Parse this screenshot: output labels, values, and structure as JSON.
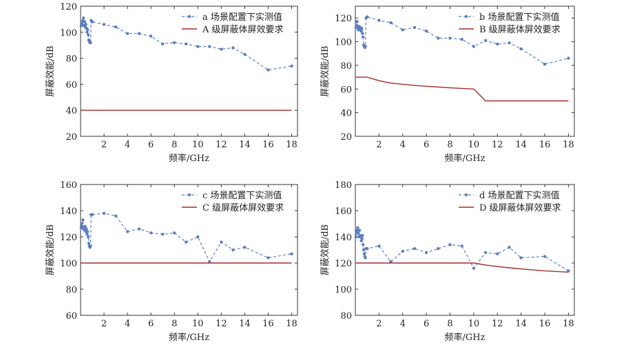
{
  "colors": {
    "measured": "#5b7fbf",
    "requirement": "#a52a2a",
    "axis": "#333333",
    "text": "#222222"
  },
  "chart_data": [
    {
      "type": "line",
      "xlabel": "频率/GHz",
      "ylabel": "屏蔽效能/dB",
      "xlim": [
        0,
        18.5
      ],
      "ylim": [
        20,
        120
      ],
      "xticks": [
        2,
        4,
        6,
        8,
        10,
        12,
        14,
        16,
        18
      ],
      "yticks": [
        20,
        40,
        60,
        80,
        100,
        120
      ],
      "legend_position": "top-right",
      "series": [
        {
          "name": "a 场景配置下实测值",
          "style": "dashed-markers",
          "x": [
            0.05,
            0.1,
            0.15,
            0.2,
            0.25,
            0.3,
            0.35,
            0.4,
            0.45,
            0.5,
            0.55,
            0.6,
            0.65,
            0.7,
            0.75,
            0.8,
            0.85,
            0.9,
            1,
            2,
            3,
            4,
            5,
            6,
            7,
            8,
            9,
            10,
            11,
            12,
            13,
            14,
            16,
            18
          ],
          "y": [
            105,
            108,
            106,
            109,
            111,
            105,
            108,
            104,
            106,
            103,
            100,
            102,
            98,
            94,
            93,
            92,
            92,
            109,
            108,
            106,
            104,
            99,
            99,
            97,
            91,
            92,
            91,
            89,
            89,
            87,
            88,
            83,
            71,
            74
          ]
        },
        {
          "name": "A 级屏蔽体屏效要求",
          "style": "solid",
          "x": [
            0,
            18
          ],
          "y": [
            40,
            40
          ]
        }
      ]
    },
    {
      "type": "line",
      "xlabel": "频率/GHz",
      "ylabel": "屏蔽效能/dB",
      "xlim": [
        0,
        18.5
      ],
      "ylim": [
        20,
        130
      ],
      "xticks": [
        2,
        4,
        6,
        8,
        10,
        12,
        14,
        16,
        18
      ],
      "yticks": [
        20,
        40,
        60,
        80,
        100,
        120
      ],
      "legend_position": "top-right",
      "series": [
        {
          "name": "b 场景配置下实测值",
          "style": "dashed-markers",
          "x": [
            0.05,
            0.1,
            0.15,
            0.2,
            0.25,
            0.3,
            0.35,
            0.4,
            0.45,
            0.5,
            0.55,
            0.6,
            0.65,
            0.7,
            0.75,
            0.8,
            0.85,
            0.9,
            1,
            2,
            3,
            4,
            5,
            6,
            7,
            8,
            9,
            10,
            11,
            12,
            13,
            14,
            16,
            18
          ],
          "y": [
            112,
            114,
            117,
            112,
            110,
            113,
            111,
            110,
            112,
            109,
            111,
            107,
            104,
            97,
            96,
            95,
            96,
            120,
            121,
            118,
            116,
            110,
            112,
            109,
            103,
            103,
            102,
            96,
            101,
            98,
            99,
            94,
            81,
            86
          ]
        },
        {
          "name": "B 级屏蔽体屏效要求",
          "style": "solid",
          "x": [
            0,
            1,
            2,
            3,
            4,
            5,
            6,
            7,
            8,
            9,
            10,
            11,
            12,
            13,
            14,
            16,
            18
          ],
          "y": [
            70,
            70,
            67,
            65,
            64,
            63,
            62.3,
            61.7,
            61,
            60.5,
            60,
            50,
            50,
            50,
            50,
            50,
            50
          ]
        }
      ]
    },
    {
      "type": "line",
      "xlabel": "频率/GHz",
      "ylabel": "屏蔽效能/dB",
      "xlim": [
        0,
        18.5
      ],
      "ylim": [
        60,
        160
      ],
      "xticks": [
        2,
        4,
        6,
        8,
        10,
        12,
        14,
        16,
        18
      ],
      "yticks": [
        60,
        80,
        100,
        120,
        140,
        160
      ],
      "legend_position": "top-right",
      "series": [
        {
          "name": "c 场景配置下实测值",
          "style": "dashed-markers",
          "x": [
            0.05,
            0.1,
            0.15,
            0.2,
            0.25,
            0.3,
            0.35,
            0.4,
            0.45,
            0.5,
            0.55,
            0.6,
            0.65,
            0.7,
            0.75,
            0.8,
            0.85,
            0.9,
            1,
            2,
            3,
            4,
            5,
            6,
            7,
            8,
            9,
            10,
            11,
            12,
            13,
            14,
            16,
            18
          ],
          "y": [
            127,
            130,
            128,
            133,
            126,
            127,
            125,
            128,
            124,
            126,
            122,
            124,
            120,
            115,
            113,
            112,
            113,
            137,
            137,
            138,
            136,
            124,
            126,
            123,
            122,
            123,
            116,
            120,
            101,
            116,
            110,
            112,
            104,
            107
          ]
        },
        {
          "name": "C 级屏蔽体屏效要求",
          "style": "solid",
          "x": [
            0,
            18
          ],
          "y": [
            100,
            100
          ]
        }
      ]
    },
    {
      "type": "line",
      "xlabel": "频率/GHz",
      "ylabel": "屏蔽效能/dB",
      "xlim": [
        0,
        18.5
      ],
      "ylim": [
        80,
        180
      ],
      "xticks": [
        2,
        4,
        6,
        8,
        10,
        12,
        14,
        16,
        18
      ],
      "yticks": [
        80,
        100,
        120,
        140,
        160,
        180
      ],
      "legend_position": "top-right",
      "series": [
        {
          "name": "d 场景配置下实测值",
          "style": "dashed-markers",
          "x": [
            0.05,
            0.1,
            0.15,
            0.2,
            0.25,
            0.3,
            0.35,
            0.4,
            0.45,
            0.5,
            0.55,
            0.6,
            0.65,
            0.7,
            0.75,
            0.8,
            0.85,
            0.9,
            1,
            2,
            3,
            4,
            5,
            6,
            7,
            8,
            9,
            10,
            11,
            12,
            13,
            14,
            16,
            18
          ],
          "y": [
            140,
            143,
            145,
            147,
            143,
            140,
            145,
            141,
            140,
            137,
            139,
            141,
            134,
            130,
            127,
            125,
            124,
            131,
            131,
            133,
            121,
            129,
            131,
            128,
            131,
            134,
            133,
            116,
            128,
            127,
            132,
            124,
            125,
            114
          ]
        },
        {
          "name": "D 级屏蔽体屏效要求",
          "style": "solid",
          "x": [
            0,
            10,
            11,
            12,
            13,
            14,
            16,
            18
          ],
          "y": [
            120,
            120,
            118.5,
            117.3,
            116.3,
            115.5,
            114,
            113
          ]
        }
      ]
    }
  ]
}
